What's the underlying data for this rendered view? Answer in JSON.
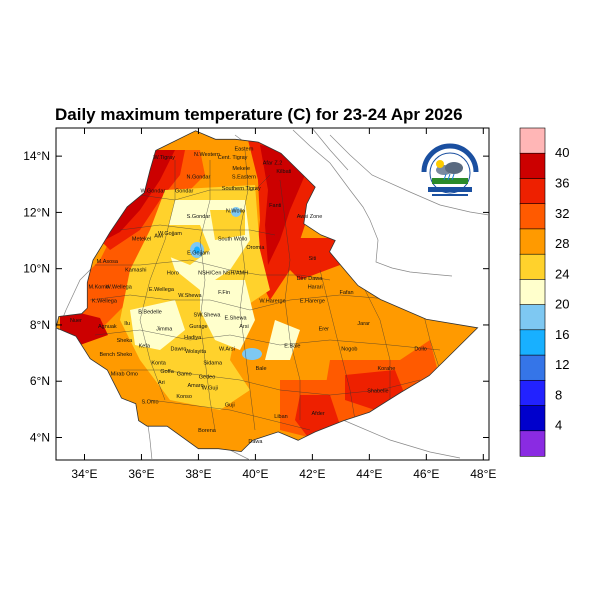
{
  "title": "Daily maximum temperature (C) for 23-24 Apr 2026",
  "axes": {
    "x_ticks": [
      "34°E",
      "36°E",
      "38°E",
      "40°E",
      "42°E",
      "44°E",
      "46°E",
      "48°E"
    ],
    "y_ticks": [
      "4°N",
      "6°N",
      "8°N",
      "10°N",
      "12°N",
      "14°N"
    ],
    "x_range_deg": [
      33,
      48.2
    ],
    "y_range_deg": [
      3.2,
      15
    ]
  },
  "colorbar": {
    "labels": [
      "40",
      "36",
      "32",
      "28",
      "24",
      "20",
      "16",
      "12",
      "8",
      "4"
    ],
    "bins": [
      {
        "color": "#ffb6b6"
      },
      {
        "color": "#cc0000"
      },
      {
        "color": "#ee2000"
      },
      {
        "color": "#ff5a00"
      },
      {
        "color": "#ff9a00"
      },
      {
        "color": "#ffd22c"
      },
      {
        "color": "#ffffcc"
      },
      {
        "color": "#7ec8f2"
      },
      {
        "color": "#18b0ff"
      },
      {
        "color": "#3575e8"
      },
      {
        "color": "#2222ff"
      },
      {
        "color": "#0000cc"
      },
      {
        "color": "#8a2be2"
      }
    ]
  },
  "logo": {
    "icon": "meteorology-agency-logo-icon"
  },
  "regions": [
    {
      "name": "N.Western",
      "lon": 38.3,
      "lat": 14.0
    },
    {
      "name": "Cent. Tigray",
      "lon": 39.2,
      "lat": 13.9
    },
    {
      "name": "Eastern",
      "lon": 39.6,
      "lat": 14.2
    },
    {
      "name": "W.Tigray",
      "lon": 36.8,
      "lat": 13.9
    },
    {
      "name": "Mekele",
      "lon": 39.5,
      "lat": 13.5
    },
    {
      "name": "Afar Z.2",
      "lon": 40.6,
      "lat": 13.7
    },
    {
      "name": "N.Gondar",
      "lon": 38.0,
      "lat": 13.2
    },
    {
      "name": "S.Eastern",
      "lon": 39.6,
      "lat": 13.2
    },
    {
      "name": "Southern Tigray",
      "lon": 39.5,
      "lat": 12.8
    },
    {
      "name": "Kilbati",
      "lon": 41.0,
      "lat": 13.4
    },
    {
      "name": "W.Gondar",
      "lon": 36.4,
      "lat": 12.7
    },
    {
      "name": "Gondar",
      "lon": 37.5,
      "lat": 12.7
    },
    {
      "name": "Fanti",
      "lon": 40.7,
      "lat": 12.2
    },
    {
      "name": "Awsi Zone",
      "lon": 41.9,
      "lat": 11.8
    },
    {
      "name": "S.Gondar",
      "lon": 38.0,
      "lat": 11.8
    },
    {
      "name": "N.Wollo",
      "lon": 39.3,
      "lat": 12.0
    },
    {
      "name": "Metekel",
      "lon": 36.0,
      "lat": 11.0
    },
    {
      "name": "W.Gojjam",
      "lon": 37.0,
      "lat": 11.2
    },
    {
      "name": "Awi",
      "lon": 36.6,
      "lat": 11.1
    },
    {
      "name": "South Wollo",
      "lon": 39.2,
      "lat": 11.0
    },
    {
      "name": "E.Gojjam",
      "lon": 38.0,
      "lat": 10.5
    },
    {
      "name": "Oromia",
      "lon": 40.0,
      "lat": 10.7
    },
    {
      "name": "Siti",
      "lon": 42.0,
      "lat": 10.3
    },
    {
      "name": "M.Asosa",
      "lon": 34.8,
      "lat": 10.2
    },
    {
      "name": "Kamashi",
      "lon": 35.8,
      "lat": 9.9
    },
    {
      "name": "Horo",
      "lon": 37.1,
      "lat": 9.8
    },
    {
      "name": "NSH/Cen",
      "lon": 38.4,
      "lat": 9.8
    },
    {
      "name": "NSH/AMH",
      "lon": 39.3,
      "lat": 9.8
    },
    {
      "name": "Dire Dawa",
      "lon": 41.9,
      "lat": 9.6
    },
    {
      "name": "Harari",
      "lon": 42.1,
      "lat": 9.3
    },
    {
      "name": "Fafan",
      "lon": 43.2,
      "lat": 9.1
    },
    {
      "name": "M.Komo",
      "lon": 34.5,
      "lat": 9.3
    },
    {
      "name": "W.Wellega",
      "lon": 35.2,
      "lat": 9.3
    },
    {
      "name": "E.Wellega",
      "lon": 36.7,
      "lat": 9.2
    },
    {
      "name": "W.Shewa",
      "lon": 37.7,
      "lat": 9.0
    },
    {
      "name": "F.Fin",
      "lon": 38.9,
      "lat": 9.1
    },
    {
      "name": "W.Harerge",
      "lon": 40.6,
      "lat": 8.8
    },
    {
      "name": "E.Harerge",
      "lon": 42.0,
      "lat": 8.8
    },
    {
      "name": "K.Wellega",
      "lon": 34.7,
      "lat": 8.8
    },
    {
      "name": "B.Bedelle",
      "lon": 36.3,
      "lat": 8.4
    },
    {
      "name": "SW.Shewa",
      "lon": 38.3,
      "lat": 8.3
    },
    {
      "name": "E.Shewa",
      "lon": 39.3,
      "lat": 8.2
    },
    {
      "name": "Jarar",
      "lon": 43.8,
      "lat": 8.0
    },
    {
      "name": "Agnuak",
      "lon": 34.8,
      "lat": 7.9
    },
    {
      "name": "Ilu",
      "lon": 35.5,
      "lat": 8.0
    },
    {
      "name": "Jimma",
      "lon": 36.8,
      "lat": 7.8
    },
    {
      "name": "Gurage",
      "lon": 38.0,
      "lat": 7.9
    },
    {
      "name": "Arsi",
      "lon": 39.6,
      "lat": 7.9
    },
    {
      "name": "Erer",
      "lon": 42.4,
      "lat": 7.8
    },
    {
      "name": "Sheka",
      "lon": 35.4,
      "lat": 7.4
    },
    {
      "name": "Hadiya",
      "lon": 37.8,
      "lat": 7.5
    },
    {
      "name": "Nuer",
      "lon": 33.7,
      "lat": 8.1
    },
    {
      "name": "Kefa",
      "lon": 36.1,
      "lat": 7.2
    },
    {
      "name": "Dawro",
      "lon": 37.3,
      "lat": 7.1
    },
    {
      "name": "Wolayita",
      "lon": 37.9,
      "lat": 7.0
    },
    {
      "name": "W.Arsi",
      "lon": 39.0,
      "lat": 7.1
    },
    {
      "name": "E.Bale",
      "lon": 41.3,
      "lat": 7.2
    },
    {
      "name": "Nogob",
      "lon": 43.3,
      "lat": 7.1
    },
    {
      "name": "Dollo",
      "lon": 45.8,
      "lat": 7.1
    },
    {
      "name": "Bench Sheko",
      "lon": 35.1,
      "lat": 6.9
    },
    {
      "name": "Mirab Omo",
      "lon": 35.4,
      "lat": 6.2
    },
    {
      "name": "Konta",
      "lon": 36.6,
      "lat": 6.6
    },
    {
      "name": "Sidama",
      "lon": 38.5,
      "lat": 6.6
    },
    {
      "name": "Goffa",
      "lon": 36.9,
      "lat": 6.3
    },
    {
      "name": "Gamo",
      "lon": 37.5,
      "lat": 6.2
    },
    {
      "name": "Korahe",
      "lon": 44.6,
      "lat": 6.4
    },
    {
      "name": "Bale",
      "lon": 40.2,
      "lat": 6.4
    },
    {
      "name": "Gedeo",
      "lon": 38.3,
      "lat": 6.1
    },
    {
      "name": "Amaro",
      "lon": 37.9,
      "lat": 5.8
    },
    {
      "name": "W.Guji",
      "lon": 38.4,
      "lat": 5.7
    },
    {
      "name": "Ari",
      "lon": 36.7,
      "lat": 5.9
    },
    {
      "name": "Shabelle",
      "lon": 44.3,
      "lat": 5.6
    },
    {
      "name": "S.Omo",
      "lon": 36.3,
      "lat": 5.2
    },
    {
      "name": "Konso",
      "lon": 37.5,
      "lat": 5.4
    },
    {
      "name": "Guji",
      "lon": 39.1,
      "lat": 5.1
    },
    {
      "name": "Afder",
      "lon": 42.2,
      "lat": 4.8
    },
    {
      "name": "Liban",
      "lon": 40.9,
      "lat": 4.7
    },
    {
      "name": "Borena",
      "lon": 38.3,
      "lat": 4.2
    },
    {
      "name": "Dawa",
      "lon": 40.0,
      "lat": 3.8
    }
  ]
}
